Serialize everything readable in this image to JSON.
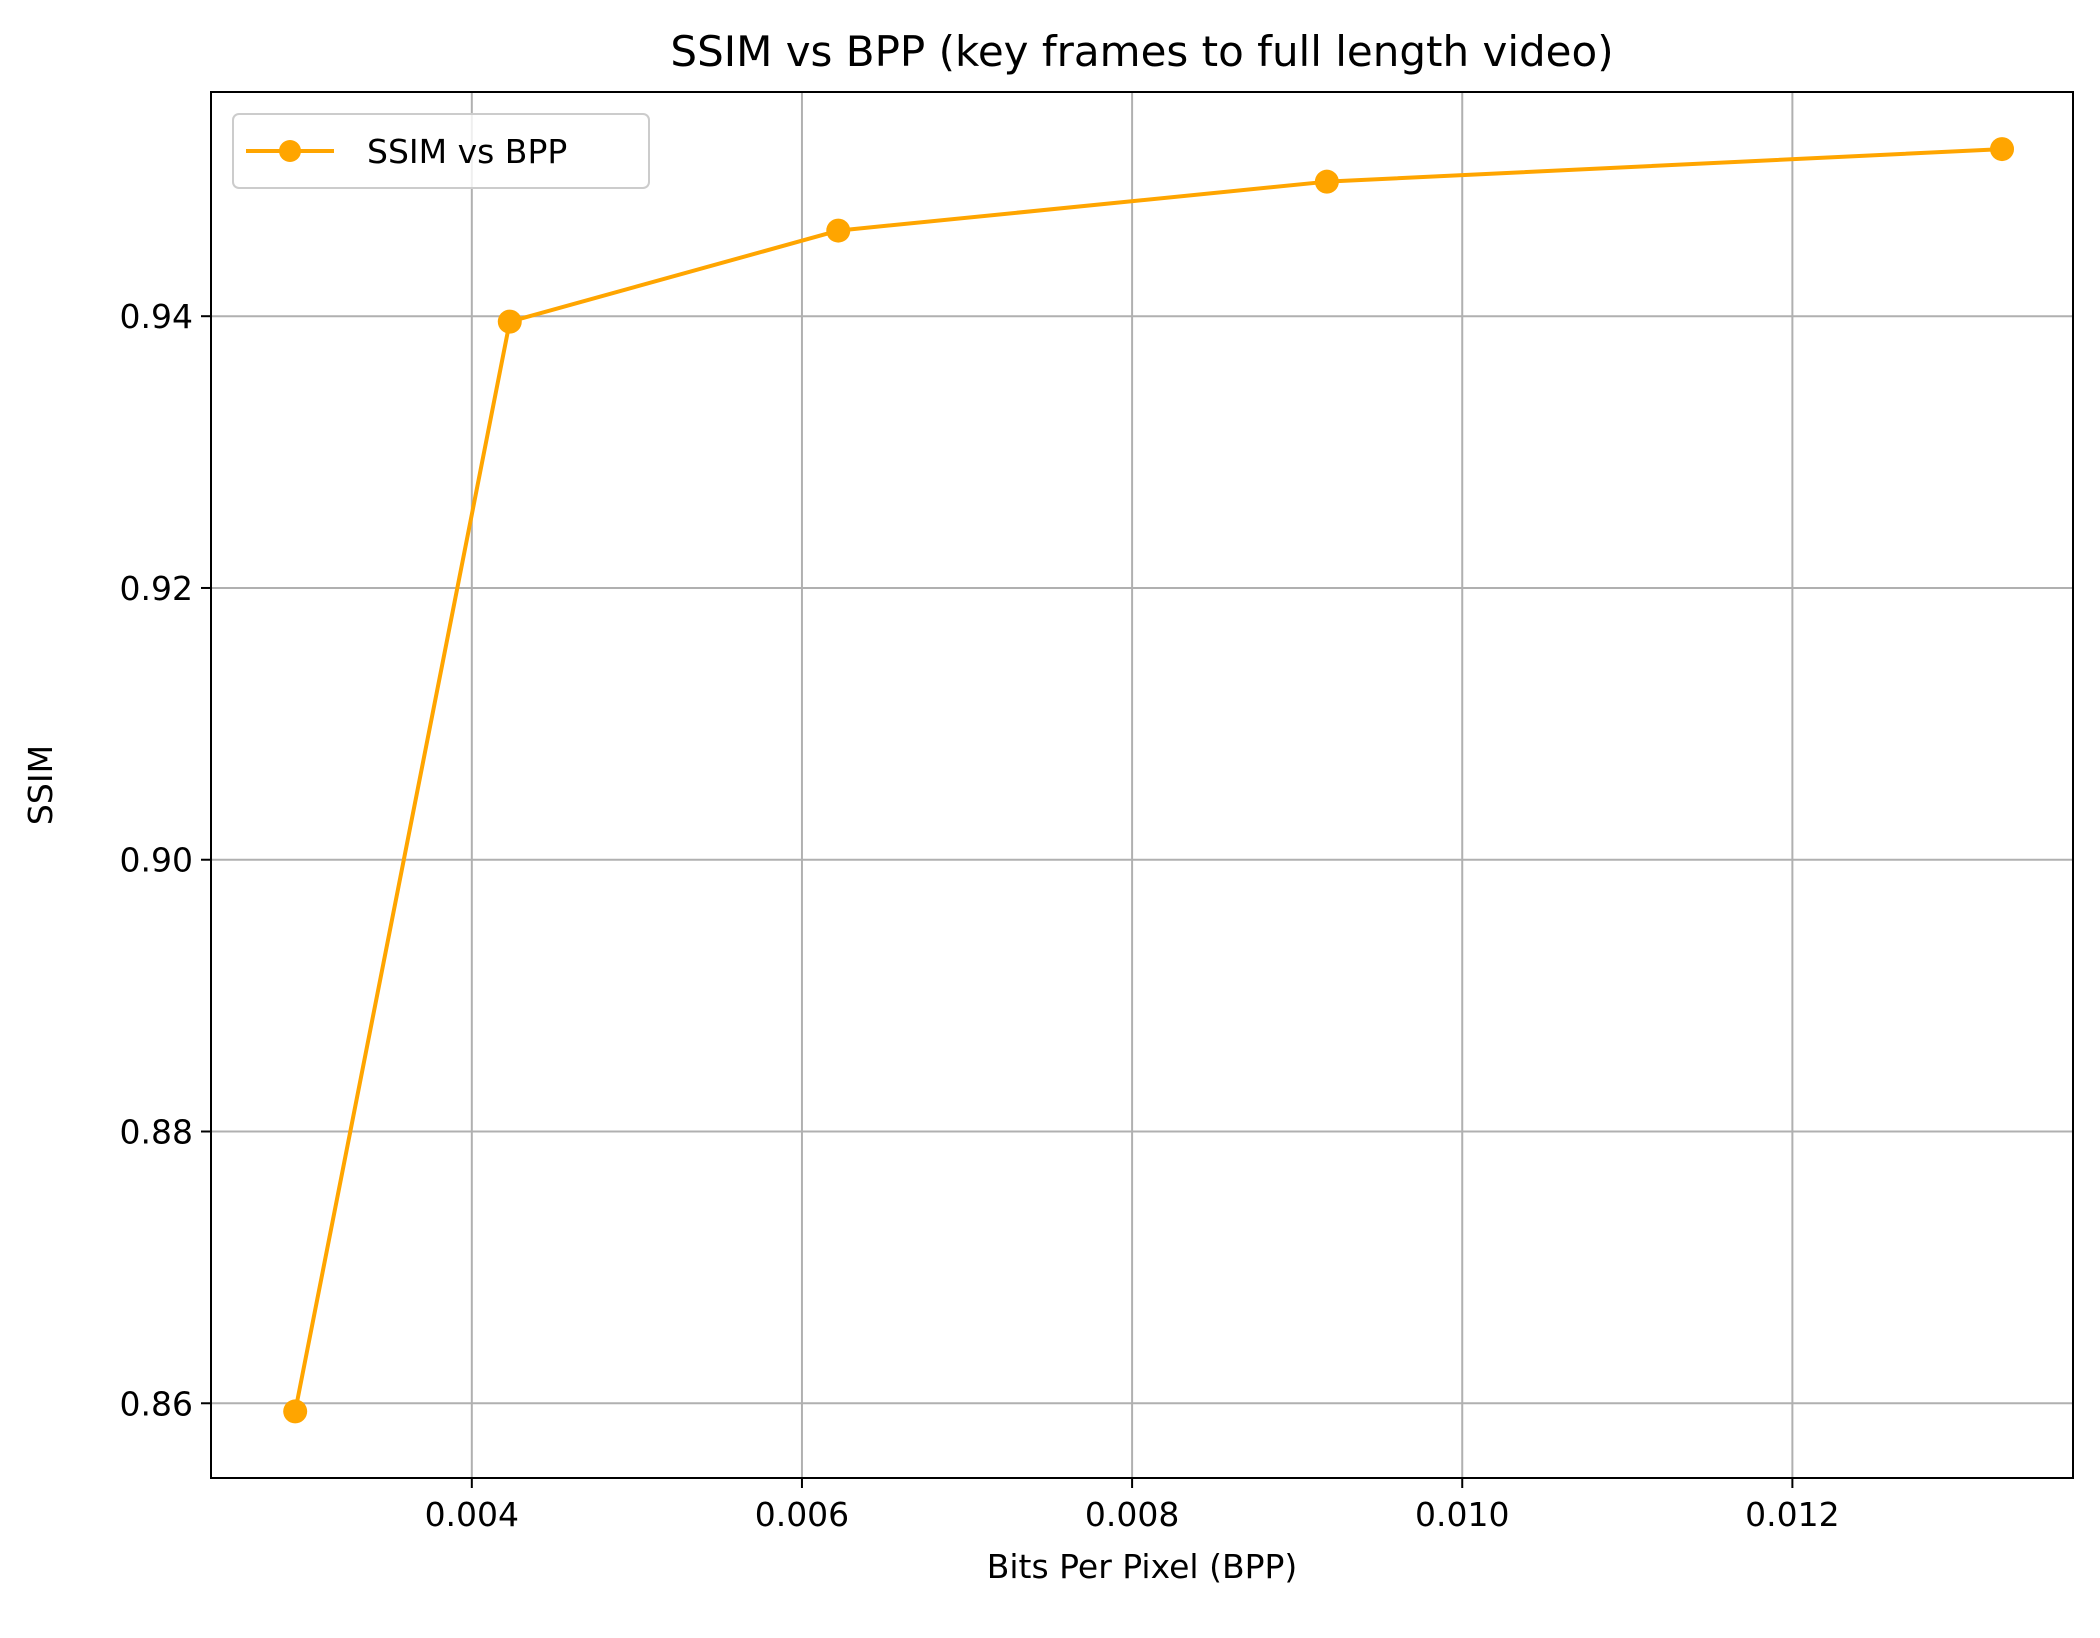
{
  "chart_data": {
    "type": "line",
    "title": "SSIM vs BPP (key frames to full length video)",
    "xlabel": "Bits Per Pixel (BPP)",
    "ylabel": "SSIM",
    "xlim": [
      0.00242,
      0.0137
    ],
    "ylim": [
      0.8545,
      0.9565
    ],
    "xticks": [
      0.004,
      0.006,
      0.008,
      0.01,
      0.012
    ],
    "xtick_labels": [
      "0.004",
      "0.006",
      "0.008",
      "0.010",
      "0.012"
    ],
    "yticks": [
      0.86,
      0.88,
      0.9,
      0.92,
      0.94
    ],
    "ytick_labels": [
      "0.86",
      "0.88",
      "0.90",
      "0.92",
      "0.94"
    ],
    "grid": true,
    "legend_position": "upper left",
    "series": [
      {
        "name": "SSIM vs BPP",
        "color": "#FFA500",
        "marker": "circle",
        "x": [
          0.00293,
          0.00423,
          0.00622,
          0.00918,
          0.01327
        ],
        "y": [
          0.8594,
          0.9396,
          0.9463,
          0.9499,
          0.9523
        ]
      }
    ]
  }
}
